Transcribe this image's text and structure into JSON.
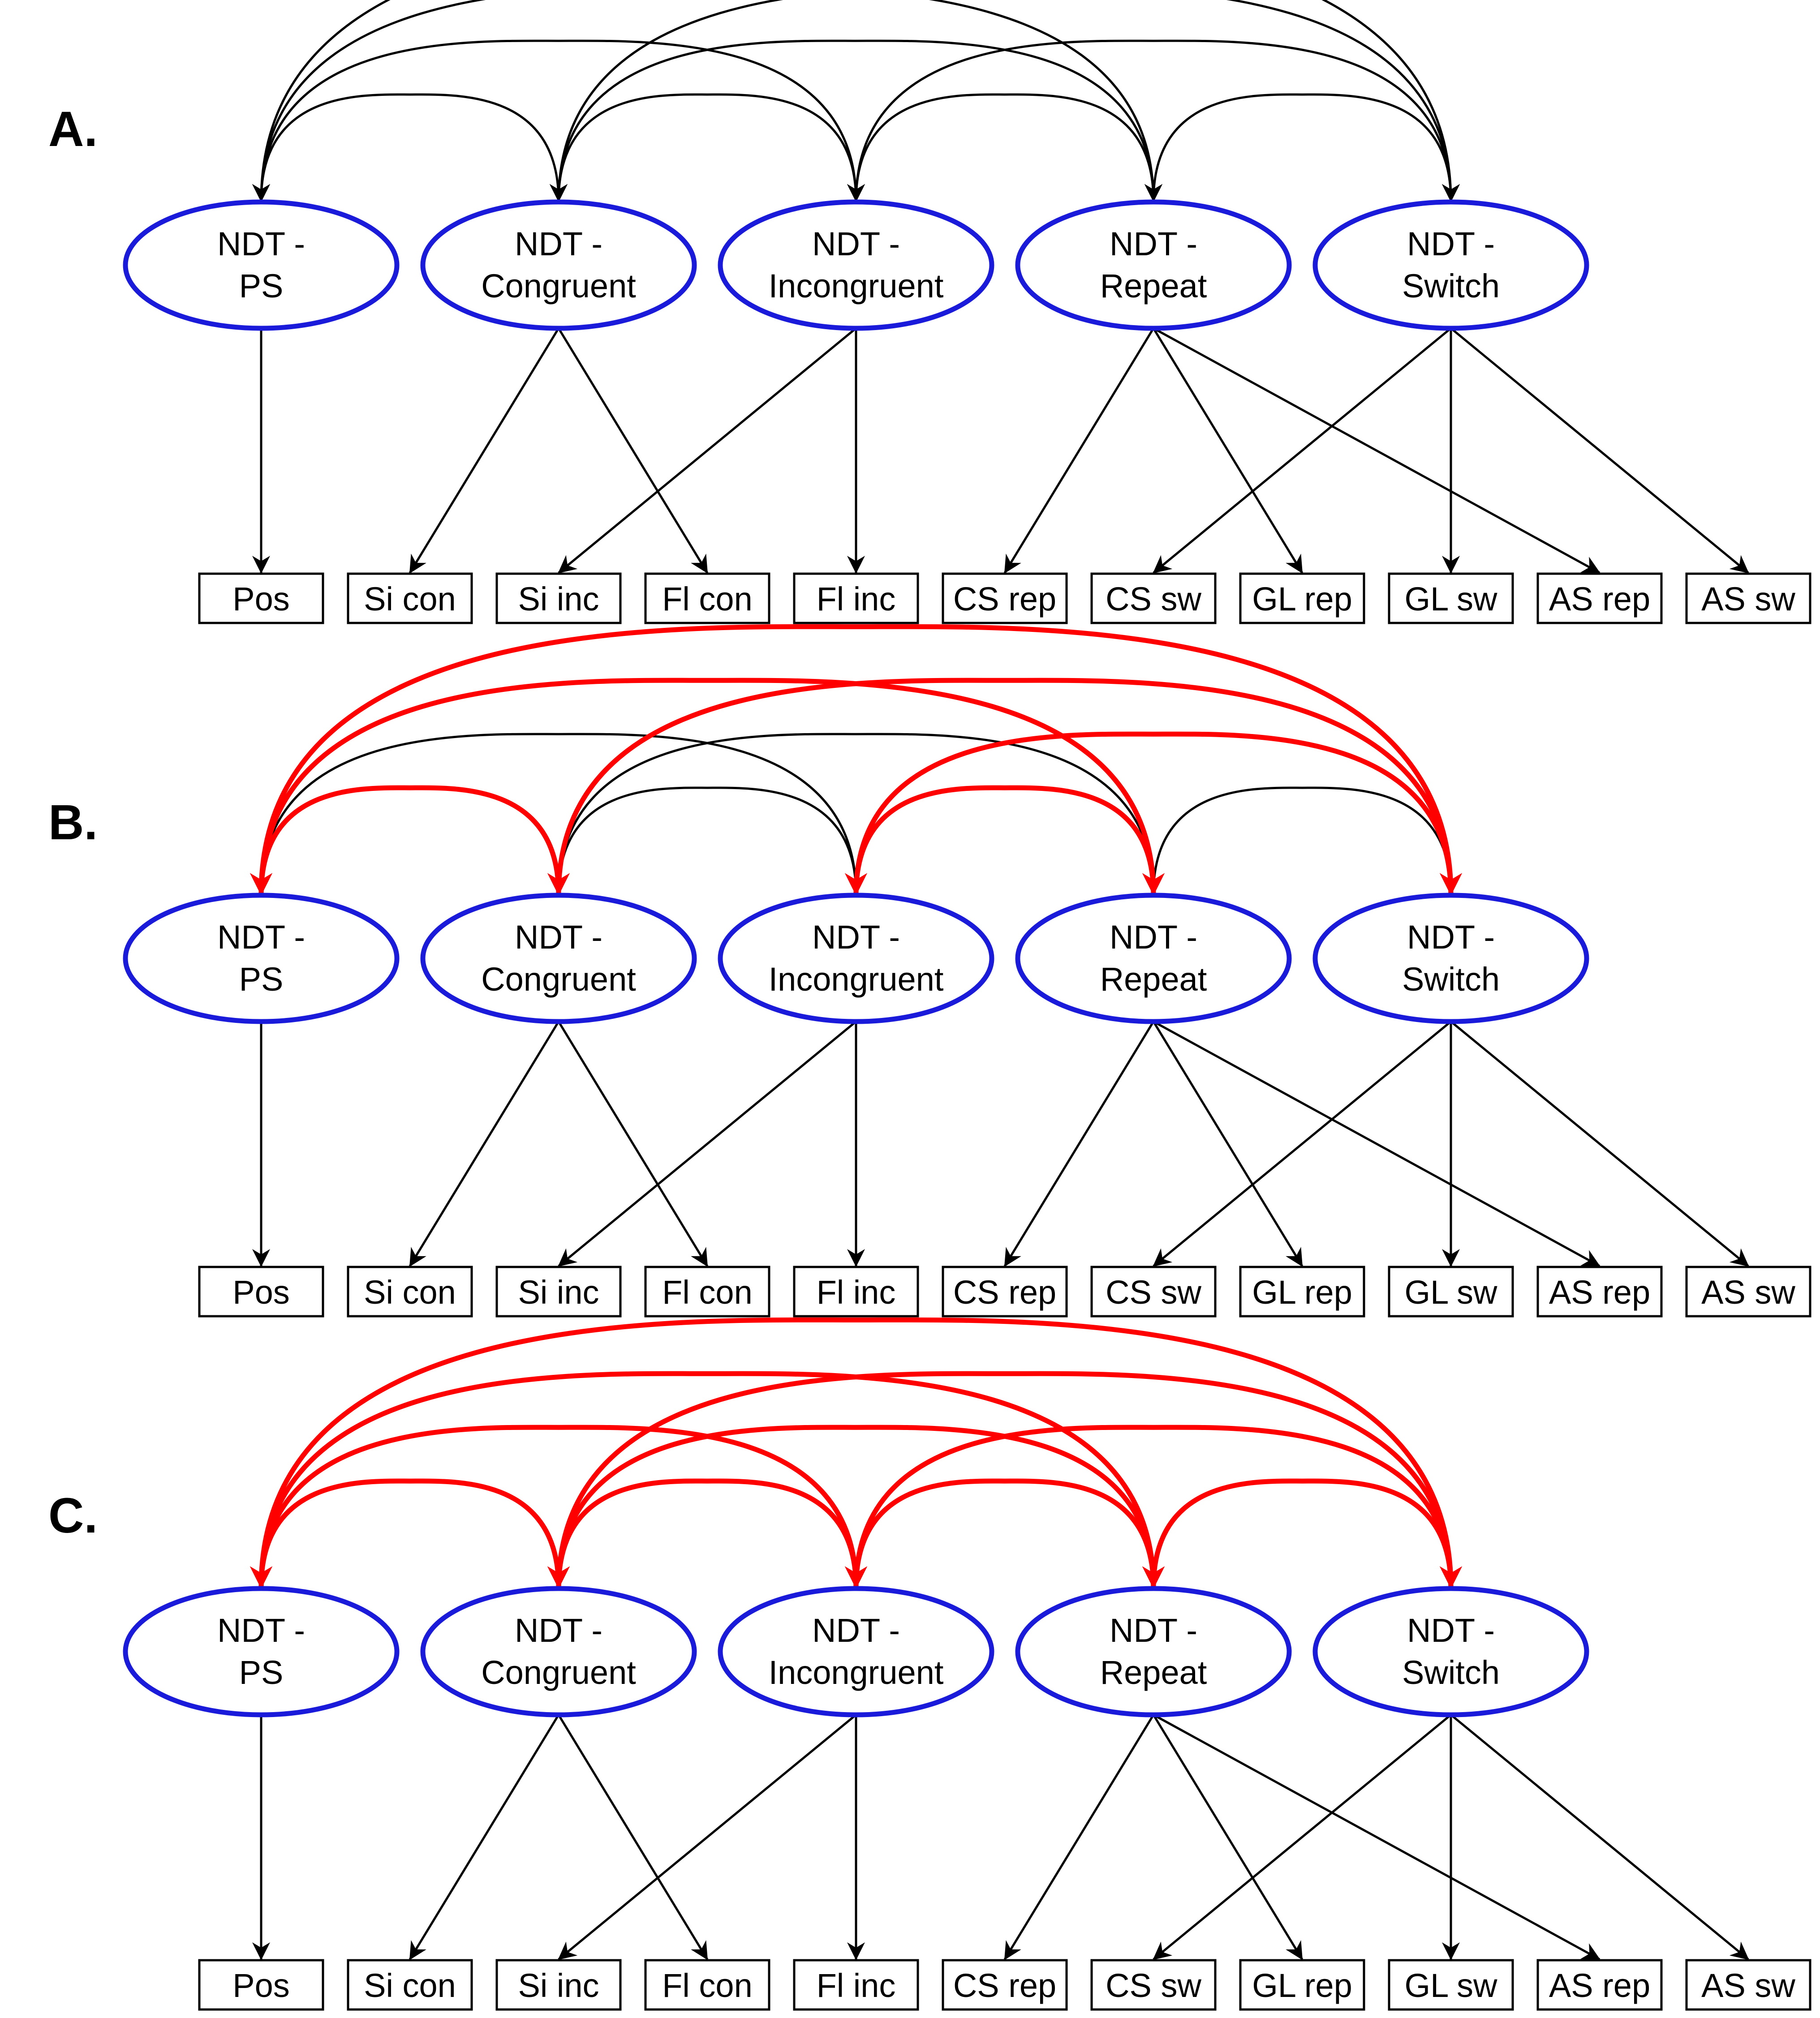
{
  "colors": {
    "factor_stroke": "#1a1adb",
    "edge": "#000000",
    "highlight": "#ff0000",
    "background": "#ffffff"
  },
  "factors": [
    {
      "id": "ps",
      "line1": "NDT -",
      "line2": "PS"
    },
    {
      "id": "con",
      "line1": "NDT -",
      "line2": "Congruent"
    },
    {
      "id": "inc",
      "line1": "NDT -",
      "line2": "Incongruent"
    },
    {
      "id": "rep",
      "line1": "NDT -",
      "line2": "Repeat"
    },
    {
      "id": "sw",
      "line1": "NDT -",
      "line2": "Switch"
    }
  ],
  "indicators": [
    {
      "id": "pos",
      "label": "Pos"
    },
    {
      "id": "sicon",
      "label": "Si con"
    },
    {
      "id": "siinc",
      "label": "Si inc"
    },
    {
      "id": "flcon",
      "label": "Fl con"
    },
    {
      "id": "flinc",
      "label": "Fl inc"
    },
    {
      "id": "csrep",
      "label": "CS rep"
    },
    {
      "id": "cssw",
      "label": "CS sw"
    },
    {
      "id": "glrep",
      "label": "GL rep"
    },
    {
      "id": "glsw",
      "label": "GL sw"
    },
    {
      "id": "asrep",
      "label": "AS rep"
    },
    {
      "id": "assw",
      "label": "AS sw"
    }
  ],
  "loadings": [
    [
      "ps",
      "pos"
    ],
    [
      "con",
      "sicon"
    ],
    [
      "con",
      "flcon"
    ],
    [
      "inc",
      "siinc"
    ],
    [
      "inc",
      "flinc"
    ],
    [
      "rep",
      "csrep"
    ],
    [
      "rep",
      "glrep"
    ],
    [
      "rep",
      "asrep"
    ],
    [
      "sw",
      "cssw"
    ],
    [
      "sw",
      "glsw"
    ],
    [
      "sw",
      "assw"
    ]
  ],
  "panels": [
    {
      "id": "A",
      "label": "A.",
      "correlations": [
        {
          "from": "ps",
          "to": "con",
          "highlight": false
        },
        {
          "from": "ps",
          "to": "inc",
          "highlight": false
        },
        {
          "from": "ps",
          "to": "rep",
          "highlight": false
        },
        {
          "from": "ps",
          "to": "sw",
          "highlight": false
        },
        {
          "from": "con",
          "to": "inc",
          "highlight": false
        },
        {
          "from": "con",
          "to": "rep",
          "highlight": false
        },
        {
          "from": "con",
          "to": "sw",
          "highlight": false
        },
        {
          "from": "inc",
          "to": "rep",
          "highlight": false
        },
        {
          "from": "inc",
          "to": "sw",
          "highlight": false
        },
        {
          "from": "rep",
          "to": "sw",
          "highlight": false
        }
      ]
    },
    {
      "id": "B",
      "label": "B.",
      "correlations": [
        {
          "from": "ps",
          "to": "con",
          "highlight": true
        },
        {
          "from": "ps",
          "to": "inc",
          "highlight": false
        },
        {
          "from": "ps",
          "to": "rep",
          "highlight": true
        },
        {
          "from": "ps",
          "to": "sw",
          "highlight": true
        },
        {
          "from": "con",
          "to": "inc",
          "highlight": false
        },
        {
          "from": "con",
          "to": "rep",
          "highlight": false
        },
        {
          "from": "con",
          "to": "sw",
          "highlight": true
        },
        {
          "from": "inc",
          "to": "rep",
          "highlight": true
        },
        {
          "from": "inc",
          "to": "sw",
          "highlight": true
        },
        {
          "from": "rep",
          "to": "sw",
          "highlight": false
        }
      ]
    },
    {
      "id": "C",
      "label": "C.",
      "correlations": [
        {
          "from": "ps",
          "to": "con",
          "highlight": true
        },
        {
          "from": "ps",
          "to": "inc",
          "highlight": true
        },
        {
          "from": "ps",
          "to": "rep",
          "highlight": true
        },
        {
          "from": "ps",
          "to": "sw",
          "highlight": true
        },
        {
          "from": "con",
          "to": "inc",
          "highlight": true
        },
        {
          "from": "con",
          "to": "rep",
          "highlight": true
        },
        {
          "from": "con",
          "to": "sw",
          "highlight": true
        },
        {
          "from": "inc",
          "to": "rep",
          "highlight": true
        },
        {
          "from": "inc",
          "to": "sw",
          "highlight": true
        },
        {
          "from": "rep",
          "to": "sw",
          "highlight": true
        }
      ]
    }
  ]
}
